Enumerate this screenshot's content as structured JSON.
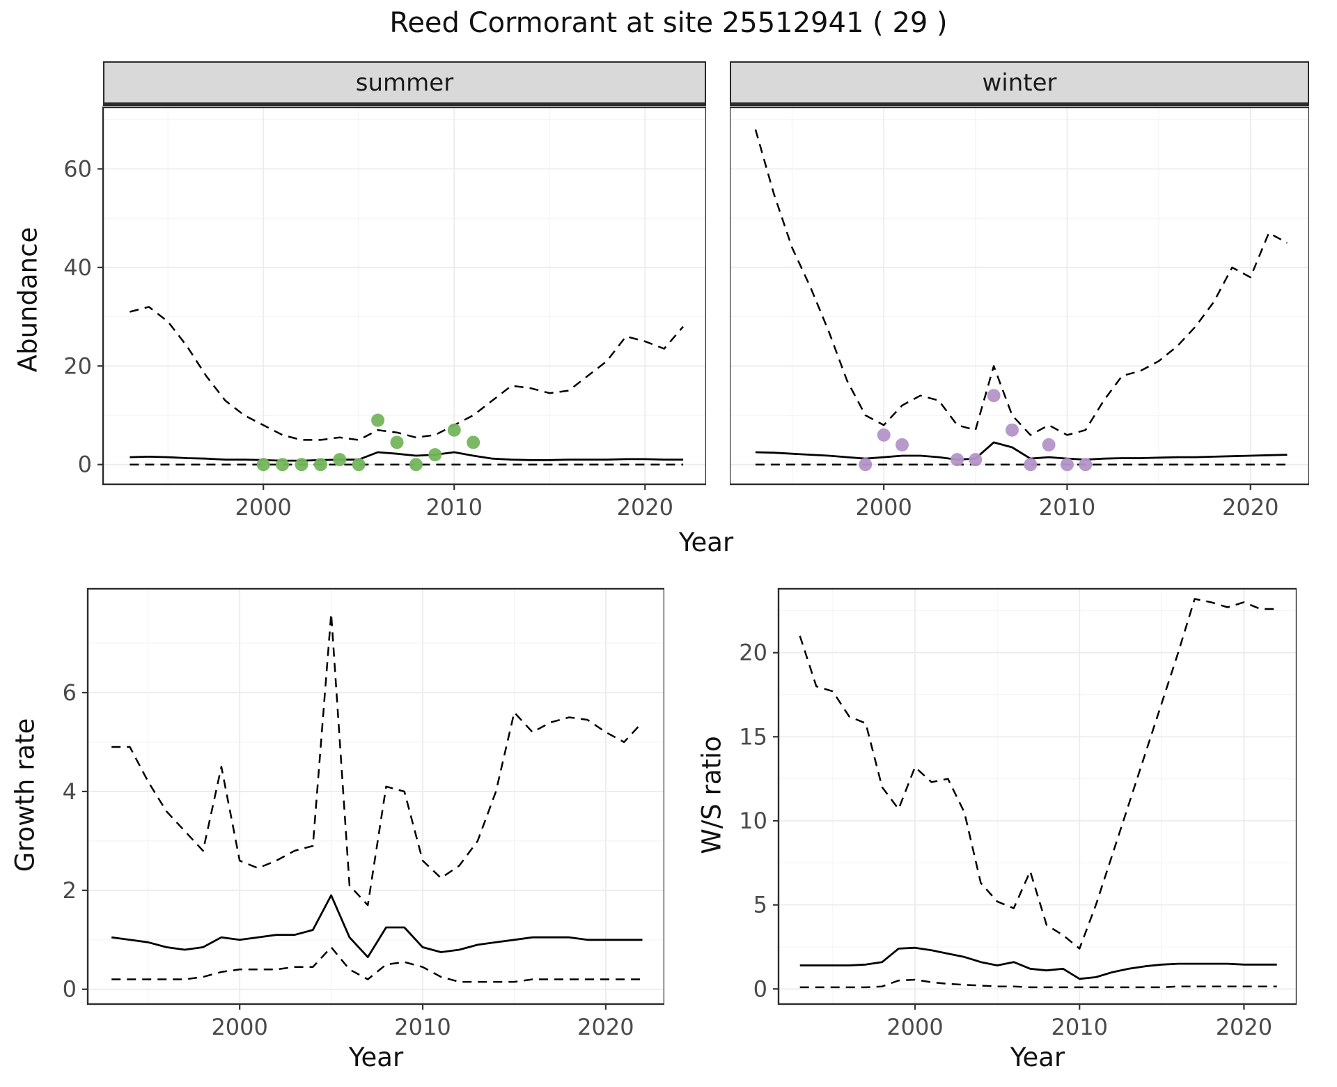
{
  "style": {
    "line_color": "#000000",
    "grid_major": "#ececec",
    "grid_minor": "#f4f4f4",
    "panel_border": "#2b2b2b",
    "tick_color": "#333333",
    "axis_text": "#4a4a4a",
    "strip_bg": "#d9d9d9",
    "summer_point_color": "#74b55c",
    "winter_point_color": "#b493c8"
  },
  "chart_data": [
    {
      "id": "abundance",
      "type": "line",
      "title": "Reed Cormorant at site 25512941 ( 29 )",
      "xlabel": "Year",
      "ylabel": "Abundance",
      "x_range": [
        1991.6,
        2023.2
      ],
      "ylim": [
        -4,
        72.5
      ],
      "xticks": [
        2000,
        2010,
        2020
      ],
      "yticks": [
        0,
        20,
        40,
        60
      ],
      "grid": true,
      "legend": "none",
      "years": [
        1993,
        1994,
        1995,
        1996,
        1997,
        1998,
        1999,
        2000,
        2001,
        2002,
        2003,
        2004,
        2005,
        2006,
        2007,
        2008,
        2009,
        2010,
        2011,
        2012,
        2013,
        2014,
        2015,
        2016,
        2017,
        2018,
        2019,
        2020,
        2021,
        2022
      ],
      "facets": [
        {
          "label": "summer",
          "series": [
            {
              "name": "upper_95ci",
              "style": "dashed",
              "values": [
                31,
                32,
                29,
                24,
                18,
                13,
                10,
                8,
                6,
                5,
                5,
                5.5,
                5,
                7,
                6.5,
                5.5,
                6,
                8,
                10,
                13,
                16,
                15.5,
                14.5,
                15,
                18,
                21,
                26,
                25,
                23.5,
                28
              ]
            },
            {
              "name": "estimate",
              "style": "solid",
              "values": [
                1.5,
                1.6,
                1.5,
                1.3,
                1.2,
                1.0,
                1.0,
                0.9,
                0.8,
                0.8,
                0.9,
                1.0,
                1.0,
                2.5,
                2.2,
                1.8,
                2.0,
                2.5,
                1.8,
                1.2,
                1.0,
                0.9,
                0.9,
                1.0,
                1.0,
                1.0,
                1.1,
                1.1,
                1.0,
                1.0
              ]
            },
            {
              "name": "lower_95ci",
              "style": "dashed",
              "values": [
                0,
                0,
                0,
                0,
                0,
                0,
                0,
                0,
                0,
                0,
                0,
                0,
                0,
                0,
                0,
                0,
                0,
                0,
                0,
                0,
                0,
                0,
                0,
                0,
                0,
                0,
                0,
                0,
                0,
                0
              ]
            }
          ],
          "points": {
            "name": "observed_counts",
            "color": "#74b55c",
            "years": [
              2000,
              2001,
              2002,
              2003,
              2004,
              2005,
              2006,
              2007,
              2008,
              2009,
              2010,
              2011
            ],
            "values": [
              0,
              0,
              0,
              0,
              1,
              0,
              9,
              4.5,
              0,
              2,
              7,
              4.5
            ]
          }
        },
        {
          "label": "winter",
          "series": [
            {
              "name": "upper_95ci",
              "style": "dashed",
              "values": [
                68,
                55,
                44,
                36,
                27,
                17,
                10,
                8,
                12,
                14,
                13,
                8,
                7,
                20,
                10,
                6,
                8,
                6,
                7,
                13,
                18,
                19,
                21,
                24,
                28,
                33,
                40,
                38,
                47,
                45
              ]
            },
            {
              "name": "estimate",
              "style": "solid",
              "values": [
                2.5,
                2.4,
                2.2,
                2.0,
                1.8,
                1.5,
                1.2,
                1.5,
                1.8,
                1.8,
                1.5,
                1.0,
                1.2,
                4.5,
                3.5,
                1.2,
                1.5,
                1.2,
                1.0,
                1.2,
                1.3,
                1.3,
                1.4,
                1.5,
                1.5,
                1.6,
                1.7,
                1.8,
                1.9,
                2.0
              ]
            },
            {
              "name": "lower_95ci",
              "style": "dashed",
              "values": [
                0,
                0,
                0,
                0,
                0,
                0,
                0,
                0,
                0,
                0,
                0,
                0,
                0,
                0,
                0,
                0,
                0,
                0,
                0,
                0,
                0,
                0,
                0,
                0,
                0,
                0,
                0,
                0,
                0,
                0
              ]
            }
          ],
          "points": {
            "name": "observed_counts",
            "color": "#b493c8",
            "years": [
              1999,
              2000,
              2001,
              2004,
              2005,
              2006,
              2007,
              2008,
              2009,
              2010,
              2011
            ],
            "values": [
              0,
              6,
              4,
              1,
              1,
              14,
              7,
              0,
              4,
              0,
              0
            ]
          }
        }
      ]
    },
    {
      "id": "growth_rate",
      "type": "line",
      "title": "",
      "xlabel": "Year",
      "ylabel": "Growth rate",
      "x_range": [
        1991.7,
        2023.2
      ],
      "ylim": [
        -0.3,
        8.1
      ],
      "xticks": [
        2000,
        2010,
        2020
      ],
      "yticks": [
        0,
        2,
        4,
        6
      ],
      "grid": true,
      "legend": "none",
      "years": [
        1993,
        1994,
        1995,
        1996,
        1997,
        1998,
        1999,
        2000,
        2001,
        2002,
        2003,
        2004,
        2005,
        2006,
        2007,
        2008,
        2009,
        2010,
        2011,
        2012,
        2013,
        2014,
        2015,
        2016,
        2017,
        2018,
        2019,
        2020,
        2021,
        2022
      ],
      "series": [
        {
          "name": "upper_95ci",
          "style": "dashed",
          "values": [
            4.9,
            4.9,
            4.2,
            3.6,
            3.2,
            2.8,
            4.5,
            2.6,
            2.45,
            2.6,
            2.8,
            2.9,
            7.6,
            2.1,
            1.7,
            4.1,
            4.0,
            2.6,
            2.25,
            2.5,
            3.0,
            4.0,
            5.6,
            5.2,
            5.4,
            5.5,
            5.45,
            5.2,
            5.0,
            5.4
          ]
        },
        {
          "name": "estimate",
          "style": "solid",
          "values": [
            1.05,
            1.0,
            0.95,
            0.85,
            0.8,
            0.85,
            1.05,
            1.0,
            1.05,
            1.1,
            1.1,
            1.2,
            1.9,
            1.05,
            0.65,
            1.25,
            1.25,
            0.85,
            0.75,
            0.8,
            0.9,
            0.95,
            1.0,
            1.05,
            1.05,
            1.05,
            1.0,
            1.0,
            1.0,
            1.0
          ]
        },
        {
          "name": "lower_95ci",
          "style": "dashed",
          "values": [
            0.2,
            0.2,
            0.2,
            0.2,
            0.2,
            0.25,
            0.35,
            0.4,
            0.4,
            0.4,
            0.45,
            0.45,
            0.85,
            0.4,
            0.2,
            0.5,
            0.55,
            0.45,
            0.25,
            0.15,
            0.15,
            0.15,
            0.15,
            0.2,
            0.2,
            0.2,
            0.2,
            0.2,
            0.2,
            0.2
          ]
        }
      ]
    },
    {
      "id": "ws_ratio",
      "type": "line",
      "title": "",
      "xlabel": "Year",
      "ylabel": "W/S ratio",
      "x_range": [
        1991.7,
        2023.2
      ],
      "ylim": [
        -0.9,
        23.8
      ],
      "xticks": [
        2000,
        2010,
        2020
      ],
      "yticks": [
        0,
        5,
        10,
        15,
        20
      ],
      "grid": true,
      "legend": "none",
      "years": [
        1993,
        1994,
        1995,
        1996,
        1997,
        1998,
        1999,
        2000,
        2001,
        2002,
        2003,
        2004,
        2005,
        2006,
        2007,
        2008,
        2009,
        2010,
        2011,
        2012,
        2013,
        2014,
        2015,
        2016,
        2017,
        2018,
        2019,
        2020,
        2021,
        2022
      ],
      "series": [
        {
          "name": "upper_95ci",
          "style": "dashed",
          "values": [
            21,
            18,
            17.7,
            16.2,
            15.8,
            12,
            10.7,
            13.2,
            12.3,
            12.5,
            10.5,
            6.3,
            5.2,
            4.8,
            7.0,
            3.8,
            3.2,
            2.4,
            5.0,
            8.0,
            11.0,
            14.0,
            17.0,
            20.0,
            23.2,
            23.0,
            22.7,
            23.0,
            22.6,
            22.6
          ]
        },
        {
          "name": "estimate",
          "style": "solid",
          "values": [
            1.4,
            1.4,
            1.4,
            1.4,
            1.45,
            1.6,
            2.4,
            2.45,
            2.3,
            2.1,
            1.9,
            1.6,
            1.4,
            1.6,
            1.2,
            1.1,
            1.2,
            0.6,
            0.7,
            1.0,
            1.2,
            1.35,
            1.45,
            1.5,
            1.5,
            1.5,
            1.5,
            1.45,
            1.45,
            1.45
          ]
        },
        {
          "name": "lower_95ci",
          "style": "dashed",
          "values": [
            0.1,
            0.1,
            0.1,
            0.1,
            0.1,
            0.15,
            0.5,
            0.55,
            0.4,
            0.3,
            0.25,
            0.2,
            0.15,
            0.15,
            0.1,
            0.1,
            0.1,
            0.1,
            0.1,
            0.1,
            0.1,
            0.1,
            0.1,
            0.15,
            0.15,
            0.15,
            0.15,
            0.15,
            0.15,
            0.15
          ]
        }
      ]
    }
  ]
}
